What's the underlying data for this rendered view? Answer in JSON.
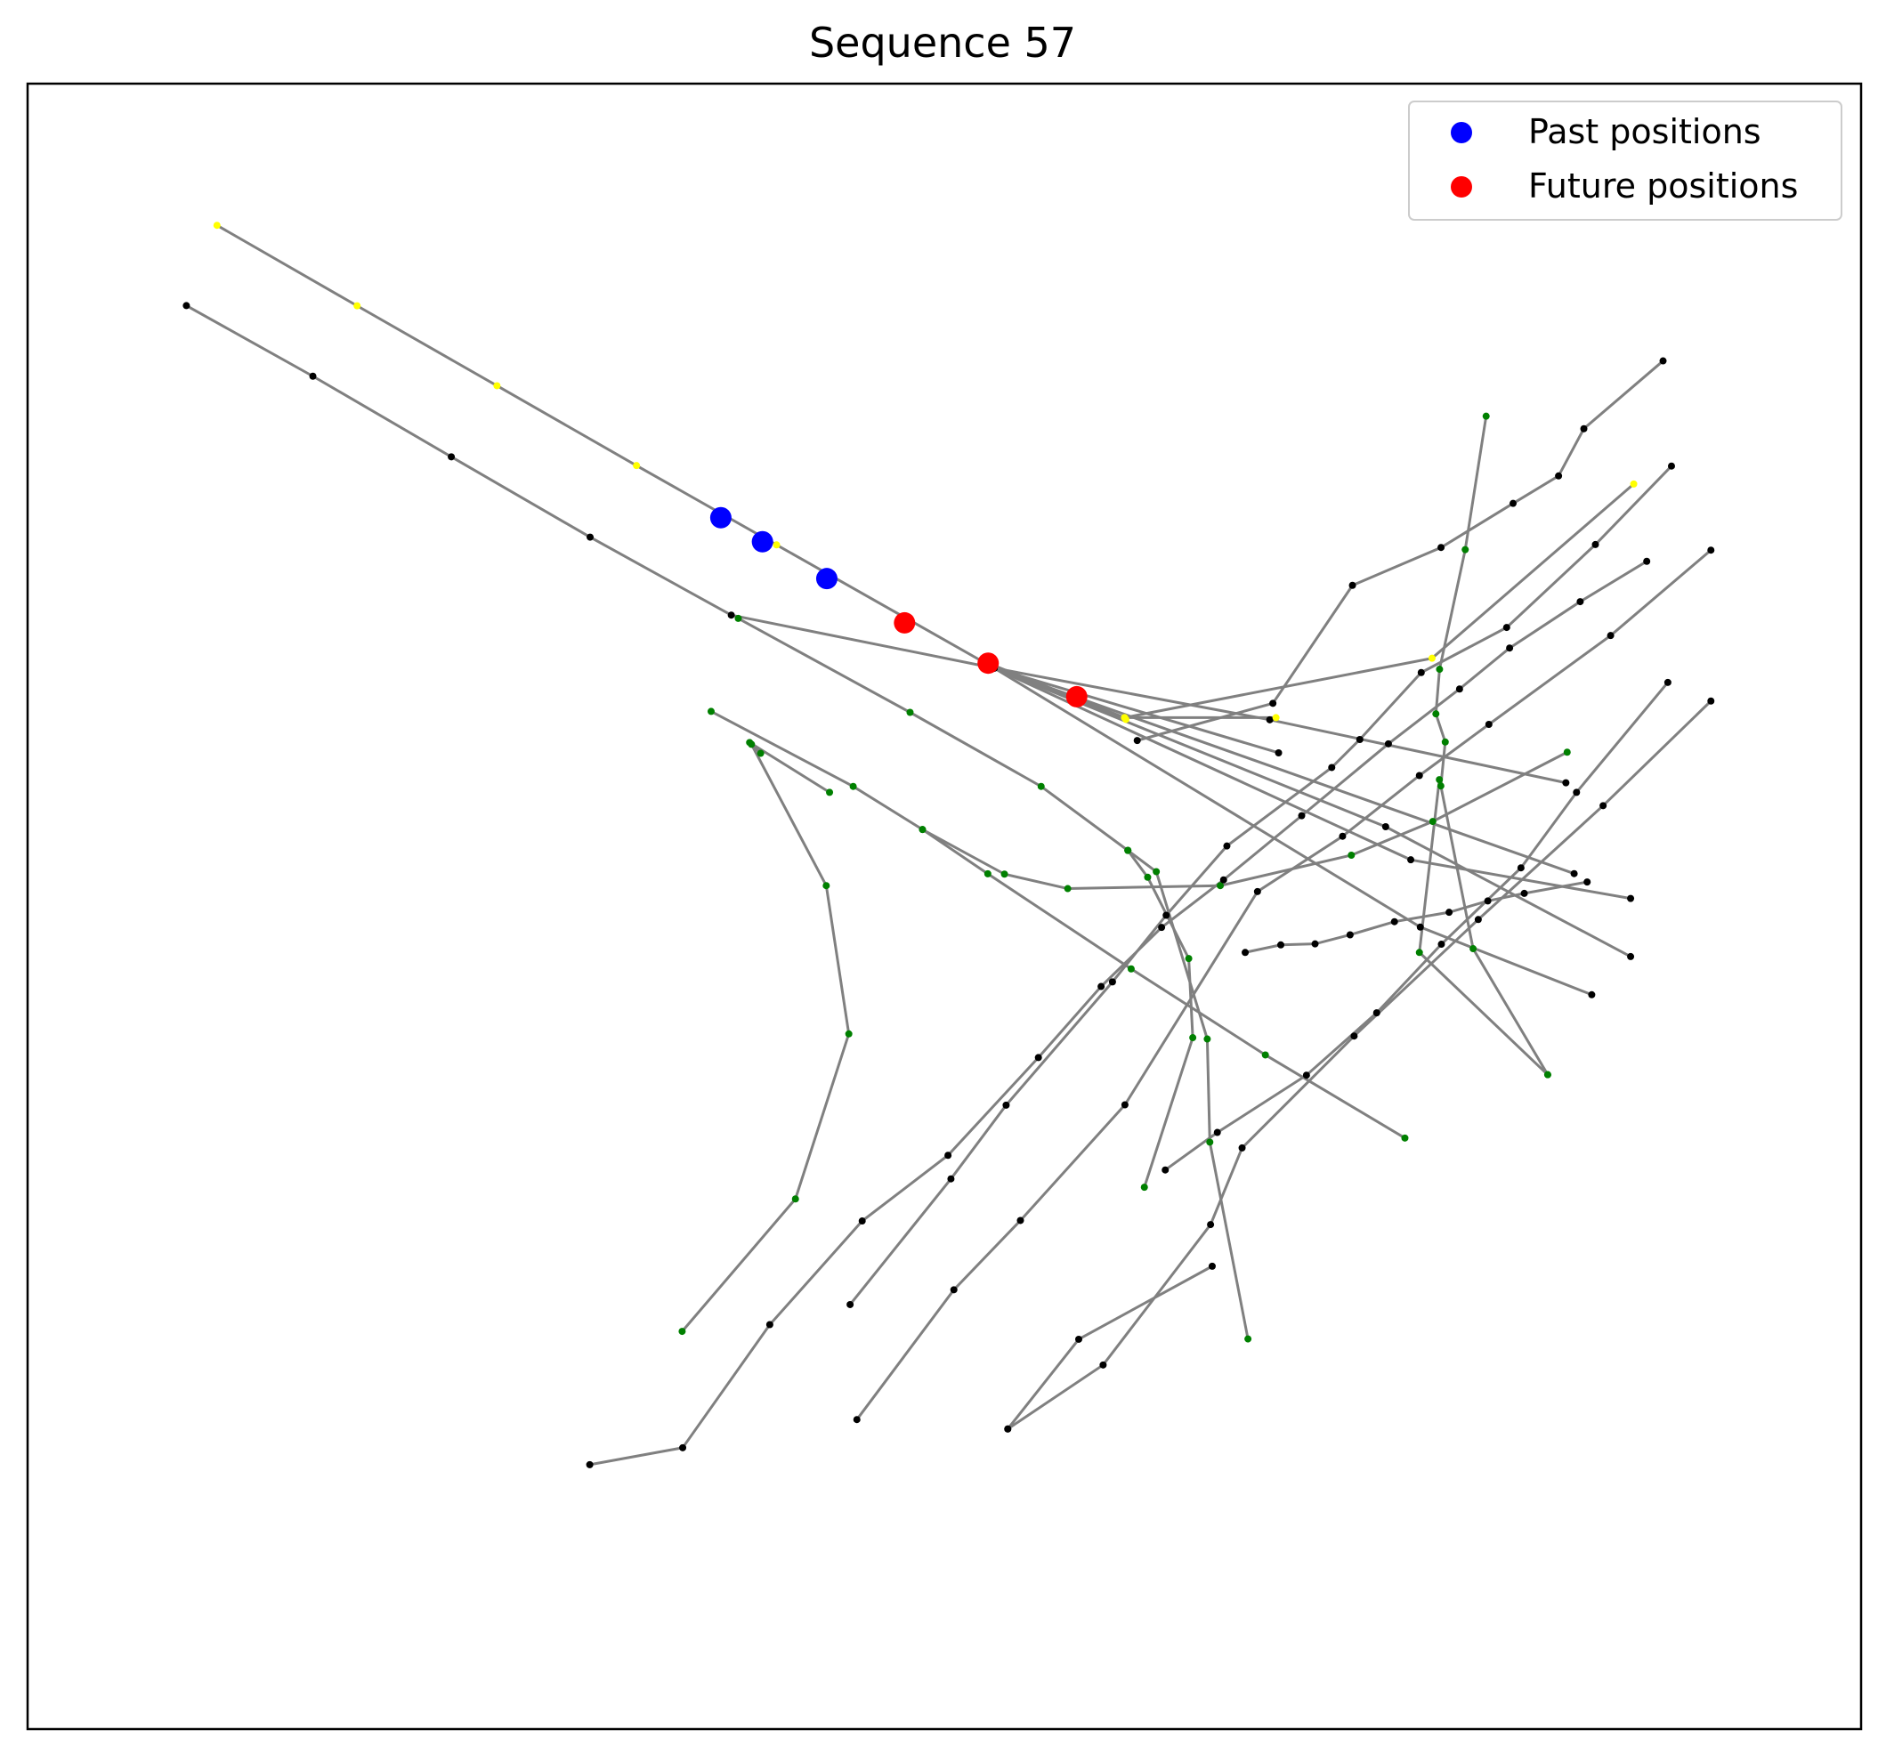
{
  "chart_data": {
    "type": "scatter",
    "title": "Sequence 57",
    "xlabel": "",
    "ylabel": "",
    "xlim": [
      0,
      1000
    ],
    "ylim": [
      -1000,
      0
    ],
    "axes_ticks": false,
    "grid": false,
    "legend_position": "top-right",
    "colors": {
      "lane": "#808080",
      "past": "#0000ff",
      "future": "#ff0000",
      "node_black": "#000000",
      "node_green": "#008000",
      "node_yellow": "#ffff00",
      "frame": "#000000"
    },
    "legend": [
      {
        "key": "past",
        "label": "Past positions"
      },
      {
        "key": "future",
        "label": "Future positions"
      }
    ],
    "past_positions": [
      {
        "x": 378.1,
        "y": -263.8
      },
      {
        "x": 400.8,
        "y": -278.4
      },
      {
        "x": 435.9,
        "y": -300.8
      }
    ],
    "future_positions": [
      {
        "x": 478.3,
        "y": -327.7
      },
      {
        "x": 523.9,
        "y": -352.2
      },
      {
        "x": 572.2,
        "y": -372.6
      }
    ],
    "lanes": [
      {
        "color": "yellow",
        "points": [
          [
            103.3,
            -86.1
          ],
          [
            179.7,
            -135.0
          ],
          [
            256.0,
            -183.6
          ],
          [
            332.1,
            -232.1
          ],
          [
            408.5,
            -280.3
          ],
          [
            522.3,
            -352.1
          ],
          [
            599.0,
            -386.4
          ]
        ]
      },
      {
        "color": "black",
        "points": [
          [
            86.6,
            -134.9
          ],
          [
            155.6,
            -177.8
          ],
          [
            231.1,
            -226.8
          ],
          [
            306.8,
            -275.6
          ],
          [
            383.8,
            -323.0
          ],
          [
            527.2,
            -355.2
          ],
          [
            682.3,
            -406.7
          ]
        ]
      },
      {
        "color": "black",
        "points": [
          [
            527.2,
            -355.2
          ],
          [
            677.5,
            -386.6
          ],
          [
            839.0,
            -424.9
          ]
        ]
      },
      {
        "color": "black",
        "points": [
          [
            527.2,
            -355.2
          ],
          [
            759.6,
            -512.6
          ],
          [
            853.1,
            -553.7
          ]
        ]
      },
      {
        "color": "black",
        "points": [
          [
            527.2,
            -355.2
          ],
          [
            754.4,
            -471.7
          ],
          [
            874.3,
            -495.2
          ]
        ]
      },
      {
        "color": "black",
        "points": [
          [
            527.2,
            -355.2
          ],
          [
            740.7,
            -451.6
          ],
          [
            874.3,
            -530.5
          ]
        ]
      },
      {
        "color": "black",
        "points": [
          [
            527.2,
            -355.2
          ],
          [
            843.5,
            -480.1
          ]
        ]
      },
      {
        "color": "yellow",
        "points": [
          [
            523.9,
            -352.2
          ],
          [
            598.3,
            -385.3
          ],
          [
            680.9,
            -385.3
          ]
        ]
      },
      {
        "color": "yellow",
        "points": [
          [
            598.3,
            -385.3
          ],
          [
            766.0,
            -349.2
          ],
          [
            876.0,
            -243.3
          ]
        ]
      },
      {
        "color": "green",
        "points": [
          [
            387.6,
            -325.0
          ],
          [
            481.3,
            -382.1
          ],
          [
            552.8,
            -427.1
          ],
          [
            600.1,
            -466.0
          ]
        ]
      },
      {
        "color": "green",
        "points": [
          [
            600.1,
            -466.0
          ],
          [
            615.6,
            -478.9
          ],
          [
            643.4,
            -580.6
          ],
          [
            644.8,
            -643.3
          ],
          [
            665.6,
            -762.9
          ]
        ]
      },
      {
        "color": "green",
        "points": [
          [
            600.1,
            -466.0
          ],
          [
            610.9,
            -482.3
          ],
          [
            633.3,
            -531.7
          ],
          [
            635.5,
            -579.8
          ],
          [
            609.1,
            -670.7
          ]
        ]
      },
      {
        "color": "green",
        "points": [
          [
            372.8,
            -381.5
          ],
          [
            450.3,
            -427.1
          ],
          [
            488.1,
            -453.3
          ],
          [
            523.7,
            -480.2
          ],
          [
            601.9,
            -538.0
          ],
          [
            675.1,
            -590.3
          ],
          [
            751.2,
            -640.8
          ]
        ]
      },
      {
        "color": "green",
        "points": [
          [
            399.8,
            -407.0
          ],
          [
            393.8,
            -400.4
          ],
          [
            437.4,
            -430.7
          ]
        ]
      },
      {
        "color": "green",
        "points": [
          [
            488.1,
            -453.3
          ],
          [
            532.8,
            -480.4
          ],
          [
            567.3,
            -489.2
          ],
          [
            650.5,
            -487.4
          ],
          [
            722.0,
            -468.9
          ],
          [
            766.4,
            -448.4
          ],
          [
            839.7,
            -406.3
          ]
        ]
      },
      {
        "color": "green",
        "points": [
          [
            394.8,
            -401.5
          ],
          [
            435.6,
            -487.4
          ],
          [
            447.9,
            -577.5
          ],
          [
            418.8,
            -677.8
          ],
          [
            357.0,
            -758.3
          ]
        ]
      },
      {
        "color": "black",
        "points": [
          [
            892.0,
            -168.5
          ],
          [
            848.8,
            -209.7
          ],
          [
            835.0,
            -238.4
          ],
          [
            810.2,
            -255.1
          ],
          [
            770.9,
            -281.9
          ],
          [
            722.6,
            -304.9
          ],
          [
            679.2,
            -376.6
          ],
          [
            605.2,
            -399.2
          ]
        ]
      },
      {
        "color": "black",
        "points": [
          [
            894.6,
            -363.9
          ],
          [
            844.8,
            -430.7
          ],
          [
            814.5,
            -476.6
          ],
          [
            771.1,
            -523.0
          ],
          [
            735.8,
            -564.7
          ],
          [
            697.5,
            -602.6
          ],
          [
            648.9,
            -637.4
          ],
          [
            620.5,
            -660.2
          ]
        ]
      },
      {
        "color": "black",
        "points": [
          [
            850.6,
            -485.2
          ],
          [
            816.3,
            -492.1
          ],
          [
            796.4,
            -496.7
          ],
          [
            775.3,
            -503.6
          ],
          [
            745.5,
            -509.3
          ],
          [
            721.3,
            -517.3
          ],
          [
            702.2,
            -522.8
          ],
          [
            683.5,
            -523.4
          ],
          [
            664.1,
            -528.0
          ]
        ]
      },
      {
        "color": "black",
        "points": [
          [
            883.1,
            -290.3
          ],
          [
            846.8,
            -314.8
          ],
          [
            808.3,
            -343.0
          ],
          [
            781.0,
            -367.9
          ],
          [
            742.2,
            -401.2
          ],
          [
            694.9,
            -444.9
          ],
          [
            652.3,
            -483.9
          ],
          [
            618.5,
            -512.8
          ],
          [
            585.5,
            -548.7
          ],
          [
            551.3,
            -591.9
          ],
          [
            502.0,
            -651.3
          ],
          [
            455.2,
            -691.2
          ],
          [
            404.8,
            -754.2
          ],
          [
            357.3,
            -829.0
          ],
          [
            306.6,
            -839.3
          ]
        ]
      },
      {
        "color": "black",
        "points": [
          [
            896.6,
            -232.4
          ],
          [
            855.1,
            -280.1
          ],
          [
            806.7,
            -330.5
          ],
          [
            760.1,
            -357.9
          ],
          [
            726.6,
            -398.6
          ],
          [
            711.3,
            -415.6
          ],
          [
            654.1,
            -463.3
          ],
          [
            621.0,
            -505.4
          ],
          [
            591.7,
            -545.9
          ],
          [
            533.7,
            -620.8
          ],
          [
            503.6,
            -665.6
          ],
          [
            448.6,
            -742.0
          ]
        ]
      },
      {
        "color": "black",
        "points": [
          [
            918.1,
            -283.5
          ],
          [
            863.4,
            -335.4
          ],
          [
            797.0,
            -389.4
          ],
          [
            759.1,
            -420.5
          ],
          [
            717.2,
            -457.4
          ],
          [
            670.8,
            -491.0
          ],
          [
            598.5,
            -620.6
          ],
          [
            541.5,
            -690.9
          ],
          [
            505.2,
            -733.0
          ],
          [
            452.3,
            -811.9
          ]
        ]
      },
      {
        "color": "black",
        "points": [
          [
            918.1,
            -375.2
          ],
          [
            859.3,
            -438.8
          ],
          [
            791.2,
            -508.0
          ],
          [
            723.5,
            -578.8
          ],
          [
            662.4,
            -646.8
          ],
          [
            645.2,
            -693.4
          ],
          [
            586.6,
            -778.7
          ],
          [
            534.6,
            -817.6
          ]
        ]
      },
      {
        "color": "black",
        "points": [
          [
            646.1,
            -718.7
          ],
          [
            573.3,
            -763.1
          ],
          [
            534.6,
            -817.6
          ]
        ]
      },
      {
        "color": "green",
        "points": [
          [
            795.5,
            -202.1
          ],
          [
            784.1,
            -283.2
          ],
          [
            770.1,
            -355.9
          ],
          [
            768.1,
            -383.0
          ],
          [
            773.2,
            -400.1
          ],
          [
            770.8,
            -426.8
          ],
          [
            788.4,
            -525.7
          ],
          [
            829.1,
            -602.3
          ]
        ]
      },
      {
        "color": "green",
        "points": [
          [
            770.0,
            -423.0
          ],
          [
            759.1,
            -528.0
          ],
          [
            829.1,
            -602.3
          ]
        ]
      }
    ]
  }
}
